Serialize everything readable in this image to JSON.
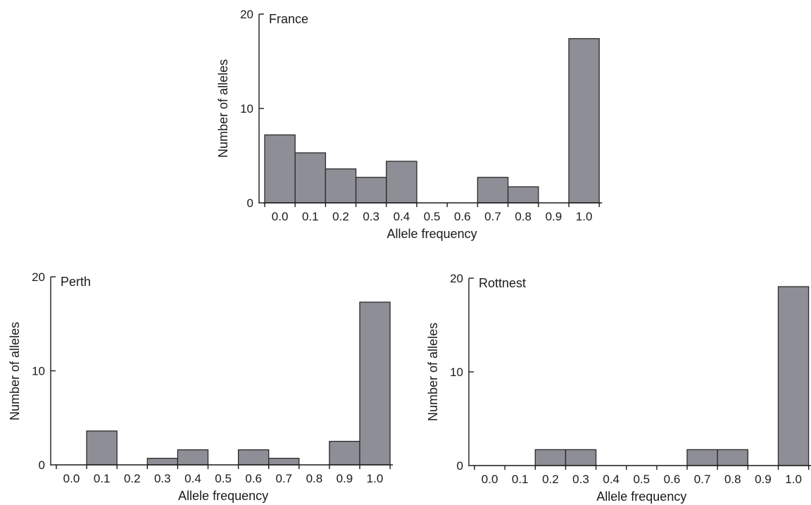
{
  "chart_data": [
    {
      "type": "bar",
      "title": "France",
      "xlabel": "Allele frequency",
      "ylabel": "Number of alleles",
      "ylim": [
        0,
        20
      ],
      "yticks": [
        "0",
        "10",
        "20"
      ],
      "categories": [
        "0.0",
        "0.1",
        "0.2",
        "0.3",
        "0.4",
        "0.5",
        "0.6",
        "0.7",
        "0.8",
        "0.9",
        "1.0"
      ],
      "values": [
        7.2,
        5.3,
        3.6,
        2.7,
        4.4,
        0,
        0,
        2.7,
        1.7,
        0,
        17.4
      ],
      "colors": {
        "bar": "#8e8e96",
        "axis": "#1a1a1a"
      }
    },
    {
      "type": "bar",
      "title": "Perth",
      "xlabel": "Allele frequency",
      "ylabel": "Number of alleles",
      "ylim": [
        0,
        20
      ],
      "yticks": [
        "0",
        "10",
        "20"
      ],
      "categories": [
        "0.0",
        "0.1",
        "0.2",
        "0.3",
        "0.4",
        "0.5",
        "0.6",
        "0.7",
        "0.8",
        "0.9",
        "1.0"
      ],
      "values": [
        0,
        3.6,
        0,
        0.7,
        1.6,
        0,
        1.6,
        0.7,
        0,
        2.5,
        17.3
      ],
      "colors": {
        "bar": "#8e8e96",
        "axis": "#1a1a1a"
      }
    },
    {
      "type": "bar",
      "title": "Rottnest",
      "xlabel": "Allele frequency",
      "ylabel": "Number of alleles",
      "ylim": [
        0,
        20
      ],
      "yticks": [
        "0",
        "10",
        "20"
      ],
      "categories": [
        "0.0",
        "0.1",
        "0.2",
        "0.3",
        "0.4",
        "0.5",
        "0.6",
        "0.7",
        "0.8",
        "0.9",
        "1.0"
      ],
      "values": [
        0,
        0,
        1.7,
        1.7,
        0,
        0,
        0,
        1.7,
        1.7,
        0,
        19.1
      ],
      "colors": {
        "bar": "#8e8e96",
        "axis": "#1a1a1a"
      }
    }
  ]
}
